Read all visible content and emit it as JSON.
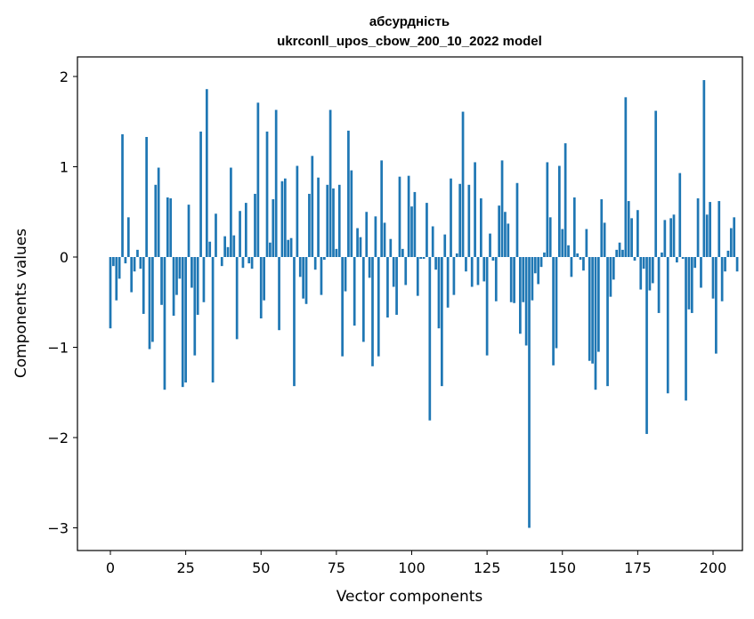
{
  "chart_data": {
    "type": "bar",
    "title": "абсурдність",
    "subtitle": "ukrconll_upos_cbow_200_10_2022 model",
    "xlabel": "Vector components",
    "ylabel": "Components values",
    "xlim": [
      -5,
      210
    ],
    "ylim": [
      -3.25,
      2.2
    ],
    "xticks": [
      0,
      25,
      50,
      75,
      100,
      125,
      150,
      175,
      200
    ],
    "yticks": [
      -3,
      -2,
      -1,
      0,
      1,
      2
    ],
    "xtick_labels": [
      "0",
      "25",
      "50",
      "75",
      "100",
      "125",
      "150",
      "175",
      "200"
    ],
    "ytick_labels": [
      "−3",
      "−2",
      "−1",
      "0",
      "1",
      "2"
    ],
    "grid": false,
    "bar_color": "#1f77b4",
    "values": [
      -0.79,
      -0.1,
      -0.48,
      -0.24,
      1.36,
      -0.07,
      0.44,
      -0.39,
      -0.16,
      0.08,
      -0.13,
      -0.63,
      1.33,
      -1.02,
      -0.94,
      0.8,
      0.99,
      -0.53,
      -1.47,
      0.66,
      0.65,
      -0.65,
      -0.42,
      -0.24,
      -1.44,
      -1.39,
      0.58,
      -0.34,
      -1.09,
      -0.64,
      1.39,
      -0.5,
      1.86,
      0.17,
      -1.39,
      0.48,
      0,
      -0.1,
      0.23,
      0.11,
      0.99,
      0.24,
      -0.91,
      0.51,
      -0.12,
      0.6,
      -0.07,
      -0.13,
      0.7,
      1.71,
      -0.68,
      -0.48,
      1.39,
      0.16,
      0.64,
      1.63,
      -0.81,
      0.84,
      0.87,
      0.19,
      0.21,
      -1.43,
      1.01,
      -0.22,
      -0.46,
      -0.52,
      0.7,
      1.12,
      -0.14,
      0.88,
      -0.42,
      -0.03,
      0.8,
      1.63,
      0.76,
      0.09,
      0.8,
      -1.1,
      -0.38,
      1.4,
      0.96,
      -0.76,
      0.32,
      0.22,
      -0.94,
      0.5,
      -0.23,
      -1.21,
      0.45,
      -1.1,
      1.07,
      0.38,
      -0.67,
      0.2,
      -0.33,
      -0.64,
      0.89,
      0.09,
      -0.31,
      0.9,
      0.56,
      0.72,
      -0.43,
      -0.02,
      -0.02,
      0.6,
      -1.81,
      0.34,
      -0.14,
      -0.79,
      -1.43,
      0.25,
      -0.56,
      0.87,
      -0.42,
      0.04,
      0.81,
      1.61,
      -0.16,
      0.8,
      -0.33,
      1.05,
      -0.31,
      0.65,
      -0.27,
      -1.09,
      0.26,
      -0.04,
      -0.49,
      0.57,
      1.07,
      0.5,
      0.37,
      -0.5,
      -0.51,
      0.82,
      -0.85,
      -0.5,
      -0.98,
      -3.0,
      -0.48,
      -0.18,
      -0.3,
      -0.11,
      0.05,
      1.05,
      0.44,
      -1.2,
      -1.01,
      1.01,
      0.31,
      1.26,
      0.13,
      -0.22,
      0.66,
      0.04,
      -0.03,
      -0.15,
      0.31,
      -1.15,
      -1.18,
      -1.47,
      -1.05,
      0.64,
      0.38,
      -1.43,
      -0.44,
      -0.25,
      0.08,
      0.16,
      0.08,
      1.77,
      0.62,
      0.43,
      -0.04,
      0.52,
      -0.36,
      -0.13,
      -1.96,
      -0.37,
      -0.29,
      1.62,
      -0.62,
      0.05,
      0.41,
      -1.51,
      0.43,
      0.47,
      -0.06,
      0.93,
      -0.02,
      -1.59,
      -0.58,
      -0.62,
      -0.12,
      0.65,
      -0.34,
      1.96,
      0.47,
      0.61,
      -0.46,
      -1.07,
      0.62,
      -0.49,
      -0.16,
      0.07,
      0.32,
      0.44,
      -0.16
    ]
  }
}
